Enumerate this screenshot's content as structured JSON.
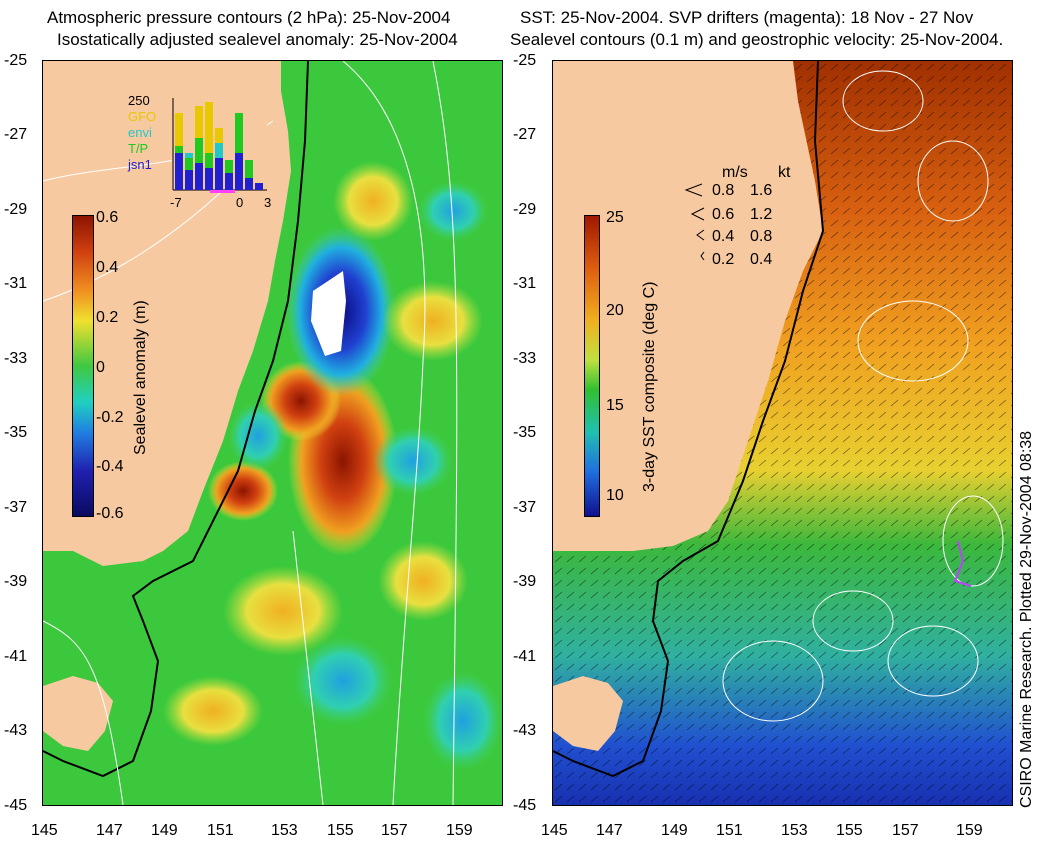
{
  "left_panel": {
    "title_line1": "Atmospheric pressure contours (2 hPa): 25-Nov-2004",
    "title_line2": "Isostatically adjusted sealevel anomaly: 25-Nov-2004",
    "colorbar": {
      "label": "Sealevel anomaly (m)",
      "ticks": [
        "0.6",
        "0.4",
        "0.2",
        "0",
        "-0.2",
        "-0.4",
        "-0.6"
      ]
    },
    "inset": {
      "ymax_label": "250",
      "legend": [
        {
          "name": "GFO",
          "color": "#e8c800"
        },
        {
          "name": "envi",
          "color": "#22c8c8"
        },
        {
          "name": "T/P",
          "color": "#22c822"
        },
        {
          "name": "jsn1",
          "color": "#2020d0"
        }
      ],
      "x_ticks": [
        "-7",
        "0",
        "3"
      ]
    }
  },
  "right_panel": {
    "title_line1": "SST: 25-Nov-2004. SVP drifters (magenta): 18 Nov - 27 Nov",
    "title_line2": "Sealevel contours (0.1 m) and geostrophic velocity: 25-Nov-2004.",
    "colorbar": {
      "label": "3-day SST composite (deg C)",
      "ticks": [
        "25",
        "20",
        "15",
        "10"
      ]
    },
    "velocity_key": {
      "header_ms": "m/s",
      "header_kt": "kt",
      "rows": [
        {
          "ms": "0.8",
          "kt": "1.6"
        },
        {
          "ms": "0.6",
          "kt": "1.2"
        },
        {
          "ms": "0.4",
          "kt": "0.8"
        },
        {
          "ms": "0.2",
          "kt": "0.4"
        }
      ]
    }
  },
  "y_ticks": [
    "-25",
    "-27",
    "-29",
    "-31",
    "-33",
    "-35",
    "-37",
    "-39",
    "-41",
    "-43",
    "-45"
  ],
  "x_ticks": [
    "145",
    "147",
    "149",
    "151",
    "153",
    "155",
    "157",
    "159"
  ],
  "credit": "CSIRO Marine Research. Plotted 29-Nov-2004 08:38",
  "colors": {
    "land": "#f7c9a0",
    "ocean_green": "#3cc83c",
    "sst_warm": "#b83c00",
    "sst_cool": "#1e3cc8"
  }
}
